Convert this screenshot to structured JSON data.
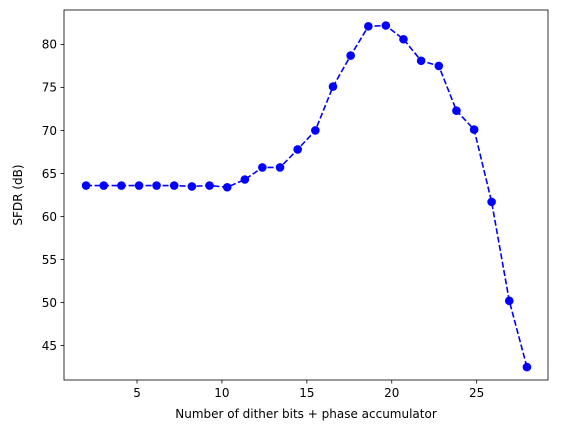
{
  "chart_data": {
    "type": "line",
    "title": "",
    "xlabel": "Number of dither bits + phase accumulator",
    "ylabel": "SFDR (dB)",
    "xlim": [
      0.7,
      29.2
    ],
    "ylim": [
      41,
      84
    ],
    "xticks": [
      5,
      10,
      15,
      20,
      25
    ],
    "yticks": [
      45,
      50,
      55,
      60,
      65,
      70,
      75,
      80
    ],
    "grid": false,
    "legend": "none",
    "series": [
      {
        "color": "#0000ff",
        "line_style": "dashed",
        "marker": "circle",
        "points": [
          [
            2.0,
            63.6
          ],
          [
            3.04,
            63.6
          ],
          [
            4.08,
            63.6
          ],
          [
            5.12,
            63.6
          ],
          [
            6.15,
            63.6
          ],
          [
            7.19,
            63.6
          ],
          [
            8.23,
            63.5
          ],
          [
            9.27,
            63.6
          ],
          [
            10.31,
            63.4
          ],
          [
            11.35,
            64.3
          ],
          [
            12.38,
            65.7
          ],
          [
            13.42,
            65.7
          ],
          [
            14.46,
            67.8
          ],
          [
            15.5,
            70.0
          ],
          [
            16.54,
            75.1
          ],
          [
            17.58,
            78.7
          ],
          [
            18.62,
            82.1
          ],
          [
            19.65,
            82.2
          ],
          [
            20.69,
            80.6
          ],
          [
            21.73,
            78.1
          ],
          [
            22.77,
            77.5
          ],
          [
            23.81,
            72.3
          ],
          [
            24.85,
            70.1
          ],
          [
            25.88,
            61.7
          ],
          [
            26.92,
            50.2
          ],
          [
            27.96,
            42.5
          ]
        ]
      }
    ]
  }
}
